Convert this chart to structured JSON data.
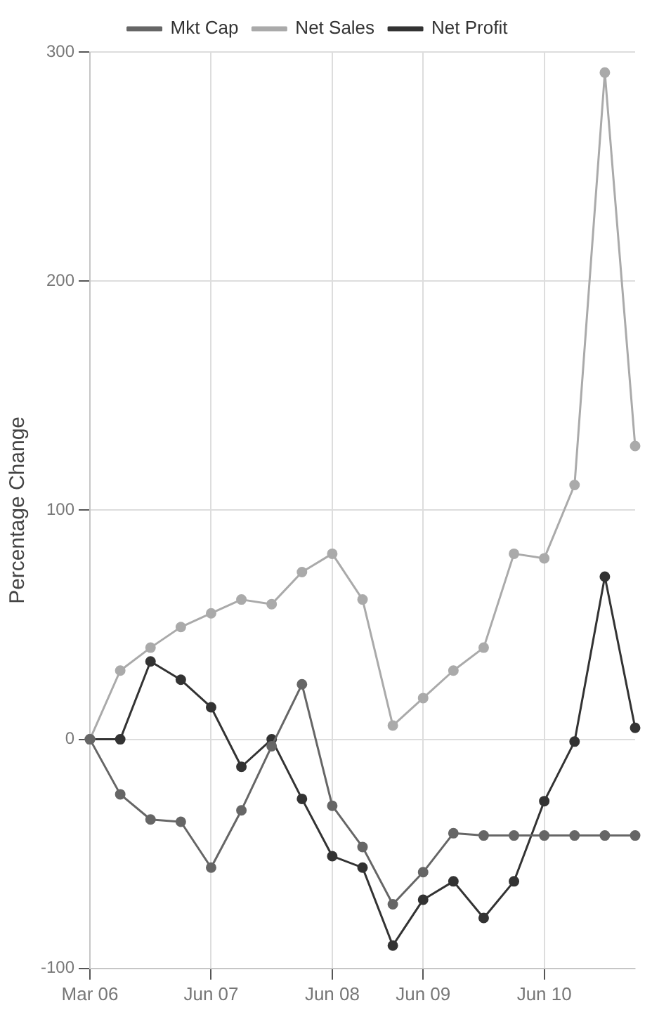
{
  "chart_data": {
    "type": "line",
    "ylabel": "Percentage Change",
    "categories": [
      "Mar 06",
      null,
      null,
      null,
      "Jun 07",
      null,
      null,
      null,
      "Jun 08",
      null,
      null,
      "Jun 09",
      null,
      null,
      null,
      "Jun 10",
      null,
      null,
      null
    ],
    "series": [
      {
        "name": "Mkt Cap",
        "color": "#666666",
        "values": [
          0,
          -24,
          -35,
          -36,
          -56,
          -31,
          -3,
          24,
          -29,
          -47,
          -72,
          -58,
          -41,
          -42,
          -42,
          -42,
          -42,
          -42,
          -42
        ]
      },
      {
        "name": "Net Sales",
        "color": "#aaaaaa",
        "values": [
          0,
          30,
          40,
          49,
          55,
          61,
          59,
          73,
          81,
          61,
          6,
          18,
          30,
          40,
          81,
          79,
          111,
          291,
          128
        ]
      },
      {
        "name": "Net Profit",
        "color": "#333333",
        "values": [
          0,
          0,
          34,
          26,
          14,
          -12,
          0,
          -26,
          -51,
          -56,
          -90,
          -70,
          -62,
          -78,
          -62,
          -27,
          -1,
          71,
          5
        ]
      }
    ],
    "ylim": [
      -100,
      300
    ],
    "yticks": [
      -100,
      0,
      100,
      200,
      300
    ],
    "grid": true,
    "legend": "top",
    "marker": "circle",
    "line_style": "solid"
  }
}
